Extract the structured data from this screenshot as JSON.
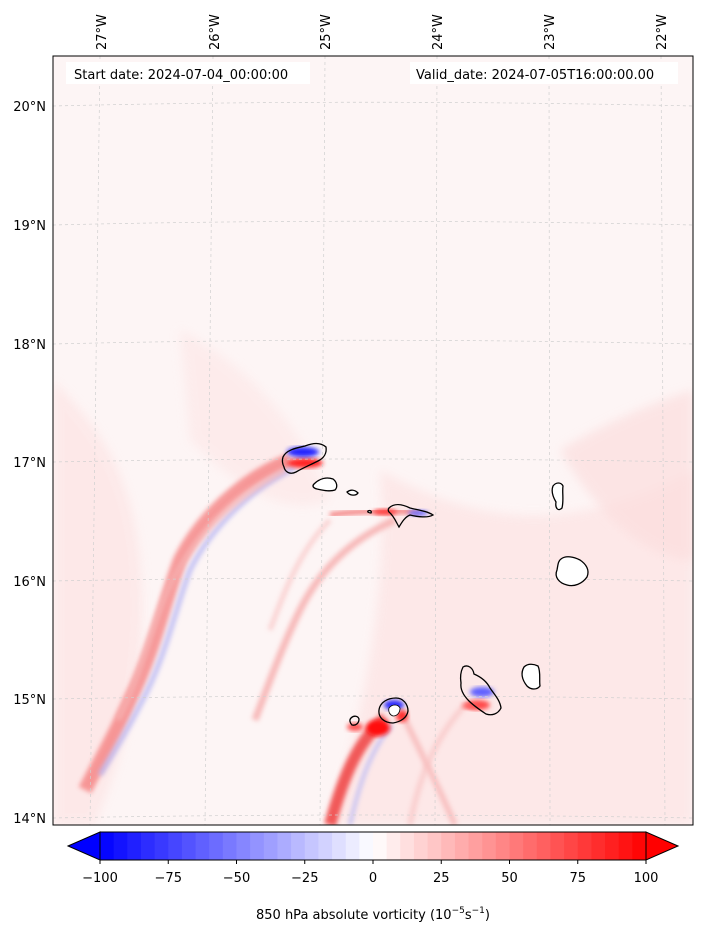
{
  "map": {
    "annotation_left": "Start date: 2024-07-04_00:00:00",
    "annotation_right": "Valid_date: 2024-07-05T16:00:00.00",
    "longitude_labels": [
      "27°W",
      "26°W",
      "25°W",
      "24°W",
      "23°W",
      "22°W"
    ],
    "latitude_labels": [
      "20°N",
      "19°N",
      "18°N",
      "17°N",
      "16°N",
      "15°N",
      "14°N"
    ],
    "field_colors": {
      "background": "#fdf5f5",
      "positive_light": "#fde6e6",
      "positive_mid": "#fbbcbc",
      "positive_strong": "#ff0000",
      "negative_light": "#eef0fd",
      "negative_mid": "#a9a9f8",
      "negative_strong": "#0000ff",
      "gridline": "#cccccc",
      "coastline": "#000000"
    }
  },
  "colorbar": {
    "tick_labels": [
      "−100",
      "−75",
      "−50",
      "−25",
      "0",
      "25",
      "50",
      "75",
      "100"
    ],
    "label_prefix": "850 hPa absolute vorticity (10",
    "label_exp1": "−5",
    "label_mid": "s",
    "label_exp2": "−1",
    "label_suffix": ")",
    "min": -100,
    "max": 100,
    "colormap": "bwr"
  }
}
